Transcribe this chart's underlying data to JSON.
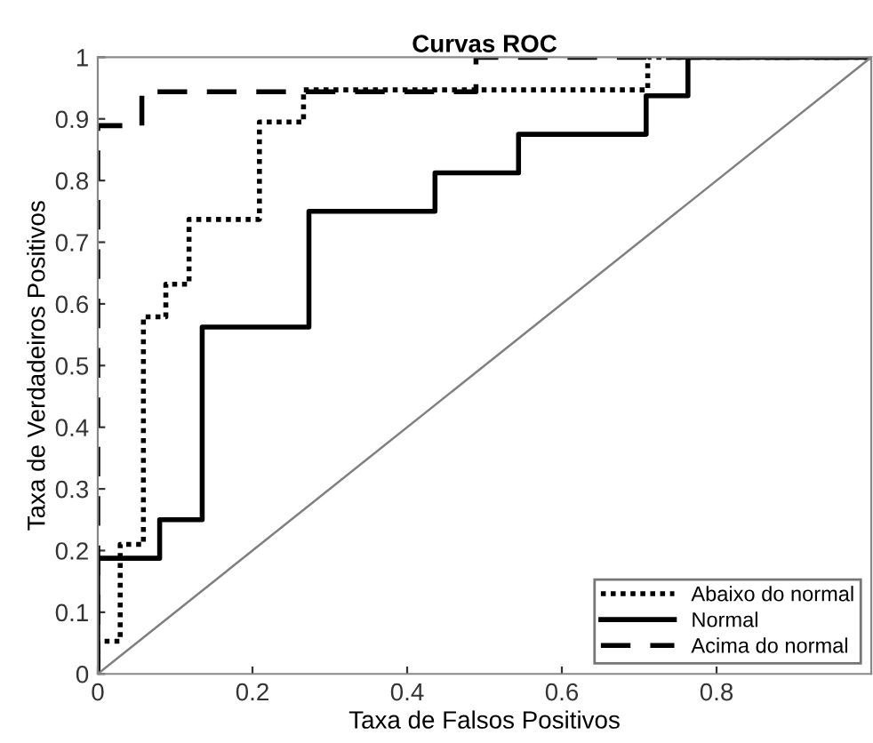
{
  "chart_data": {
    "type": "line",
    "title": "Curvas ROC",
    "xlabel": "Taxa de Falsos Positivos",
    "ylabel": "Taxa de Verdadeiros Positivos",
    "xlim": [
      0,
      1
    ],
    "ylim": [
      0,
      1
    ],
    "xticks": [
      0,
      0.2,
      0.4,
      0.6,
      0.8
    ],
    "yticks": [
      0,
      0.1,
      0.2,
      0.3,
      0.4,
      0.5,
      0.6,
      0.7,
      0.8,
      0.9,
      1
    ],
    "grid": false,
    "legend": "bottom right",
    "marker": "none",
    "series": [
      {
        "name": "Abaixo do normal",
        "color": "#000000",
        "line_style": "dotted",
        "x": [
          0,
          0,
          0.029,
          0.029,
          0.059,
          0.059,
          0.088,
          0.088,
          0.118,
          0.118,
          0.209,
          0.209,
          0.266,
          0.266,
          0.711,
          0.711,
          1
        ],
        "values": [
          0,
          0.053,
          0.053,
          0.21,
          0.21,
          0.579,
          0.579,
          0.632,
          0.632,
          0.737,
          0.737,
          0.895,
          0.895,
          0.947,
          0.947,
          1,
          1
        ]
      },
      {
        "name": "Normal",
        "color": "#000000",
        "line_style": "solid",
        "x": [
          0,
          0,
          0.08,
          0.08,
          0.135,
          0.135,
          0.273,
          0.273,
          0.436,
          0.436,
          0.544,
          0.544,
          0.709,
          0.709,
          0.763,
          0.763,
          1
        ],
        "values": [
          0,
          0.1875,
          0.1875,
          0.25,
          0.25,
          0.5625,
          0.5625,
          0.75,
          0.75,
          0.8125,
          0.8125,
          0.875,
          0.875,
          0.9375,
          0.9375,
          1,
          1
        ]
      },
      {
        "name": "Acima do normal",
        "color": "#000000",
        "line_style": "dashed",
        "x": [
          0,
          0,
          0.057,
          0.057,
          0.489,
          0.489,
          1
        ],
        "values": [
          0,
          0.889,
          0.889,
          0.944,
          0.944,
          1,
          1
        ]
      },
      {
        "color": "#808080",
        "line_style": "solid",
        "x": [
          0,
          1
        ],
        "values": [
          0,
          1
        ]
      }
    ]
  }
}
